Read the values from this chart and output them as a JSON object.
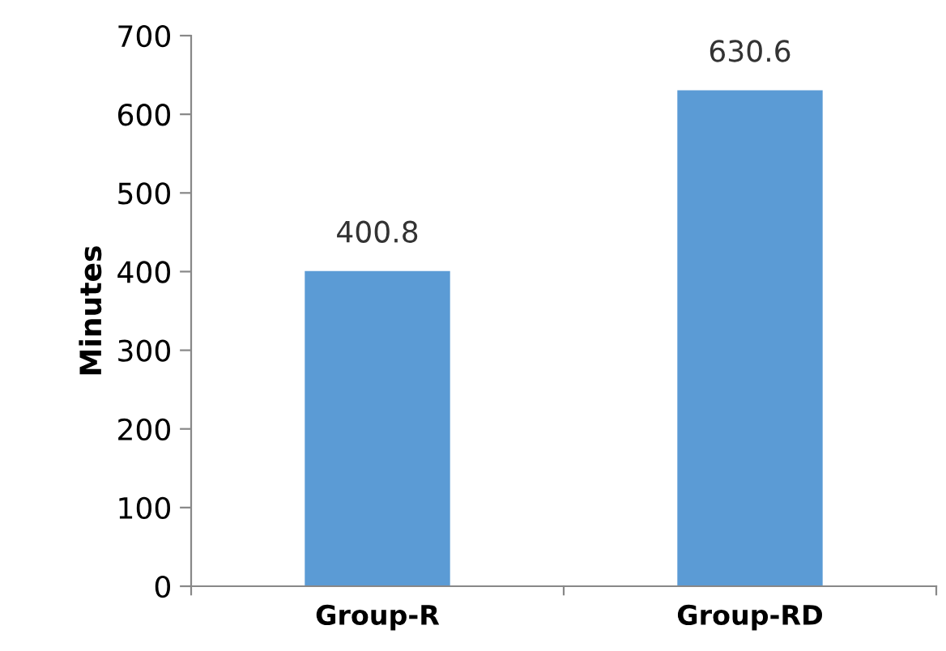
{
  "chart_data": {
    "type": "bar",
    "ylabel": "Minutes",
    "categories": [
      "Group-R",
      "Group-RD"
    ],
    "values": [
      400.8,
      630.6
    ],
    "color": "#5b9bd5",
    "ylim": [
      0,
      700
    ],
    "yticks": [
      0,
      100,
      200,
      300,
      400,
      500,
      600,
      700
    ],
    "data_labels": true,
    "grid": false,
    "legend": false
  }
}
